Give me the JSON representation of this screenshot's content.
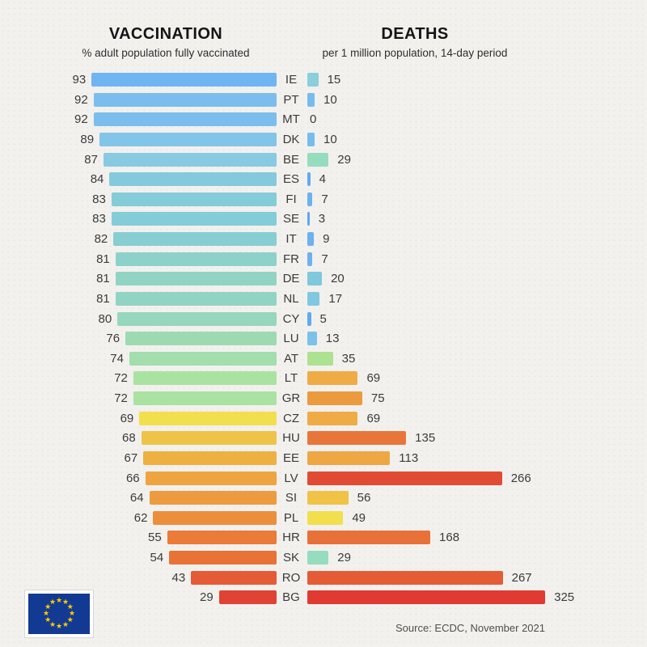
{
  "header": {
    "vaccination": {
      "title": "VACCINATION",
      "subtitle": "% adult population fully vaccinated"
    },
    "deaths": {
      "title": "DEATHS",
      "subtitle": "per 1 million population, 14-day period"
    }
  },
  "footer": {
    "source": "Source: ECDC, November 2021"
  },
  "logo": {
    "name": "eu-flag",
    "blue": "#123A93",
    "star_yellow": "#FFCC00",
    "star_count": 12
  },
  "chart_data": {
    "type": "bar",
    "layout": "back-to-back horizontal bar chart, one row per country",
    "left_panel": {
      "title": "VACCINATION",
      "subtitle": "% adult population fully vaccinated",
      "xlim": [
        0,
        100
      ],
      "direction": "right-to-left"
    },
    "right_panel": {
      "title": "DEATHS",
      "subtitle": "per 1 million population, 14-day period",
      "xlim": [
        0,
        325
      ],
      "direction": "left-to-right"
    },
    "grid": false,
    "legend": false,
    "source": "Source: ECDC, November 2021",
    "categories": [
      "IE",
      "PT",
      "MT",
      "DK",
      "BE",
      "ES",
      "FI",
      "SE",
      "IT",
      "FR",
      "DE",
      "NL",
      "CY",
      "LU",
      "AT",
      "LT",
      "GR",
      "CZ",
      "HU",
      "EE",
      "LV",
      "SI",
      "PL",
      "HR",
      "SK",
      "RO",
      "BG"
    ],
    "series": [
      {
        "name": "vaccination_pct_adult_fully_vaccinated",
        "values": [
          93,
          92,
          92,
          89,
          87,
          84,
          83,
          83,
          82,
          81,
          81,
          81,
          80,
          76,
          74,
          72,
          72,
          69,
          68,
          67,
          66,
          64,
          62,
          55,
          54,
          43,
          29
        ],
        "colors": [
          "#6FB5F1",
          "#7BBEEE",
          "#7BBEEE",
          "#82C5E9",
          "#88CAE2",
          "#85CADC",
          "#84CCD8",
          "#84CCD8",
          "#87CED2",
          "#8DD2CA",
          "#92D4C3",
          "#92D4C3",
          "#96D7BD",
          "#9DDAB2",
          "#A3DEAC",
          "#AAE3A1",
          "#AAE3A1",
          "#F2DF4D",
          "#EFC348",
          "#EFB042",
          "#EEA440",
          "#ED9B3E",
          "#EC8F3C",
          "#EA7B38",
          "#E97236",
          "#E55B36",
          "#E04334"
        ]
      },
      {
        "name": "deaths_per_1_million_14_day_period",
        "values": [
          15,
          10,
          0,
          10,
          29,
          4,
          7,
          3,
          9,
          7,
          20,
          17,
          5,
          13,
          35,
          69,
          75,
          69,
          135,
          113,
          266,
          56,
          49,
          168,
          29,
          267,
          325
        ],
        "colors": [
          "#8BCEDC",
          "#76BCEE",
          null,
          "#76BCEE",
          "#96DCBE",
          "#60AAF2",
          "#6BB2EE",
          "#5CA8F4",
          "#6BB2EE",
          "#6BB2EE",
          "#7FC8DD",
          "#80C8E1",
          "#60AAF2",
          "#7AC2E8",
          "#ACE290",
          "#EFAC46",
          "#EC9A3E",
          "#EFAC46",
          "#E8763A",
          "#EFA744",
          "#E14B34",
          "#F0C245",
          "#F2DF4D",
          "#E8713A",
          "#96DCBE",
          "#E55B36",
          "#E03A32"
        ]
      }
    ]
  }
}
